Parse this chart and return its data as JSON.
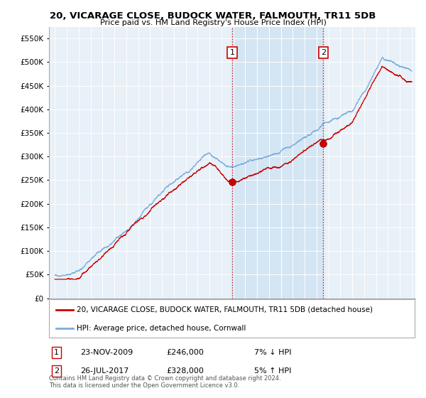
{
  "title": "20, VICARAGE CLOSE, BUDOCK WATER, FALMOUTH, TR11 5DB",
  "subtitle": "Price paid vs. HM Land Registry's House Price Index (HPI)",
  "legend_house": "20, VICARAGE CLOSE, BUDOCK WATER, FALMOUTH, TR11 5DB (detached house)",
  "legend_hpi": "HPI: Average price, detached house, Cornwall",
  "transaction1_label": "1",
  "transaction1_date": "23-NOV-2009",
  "transaction1_price": "£246,000",
  "transaction1_hpi": "7% ↓ HPI",
  "transaction2_label": "2",
  "transaction2_date": "26-JUL-2017",
  "transaction2_price": "£328,000",
  "transaction2_hpi": "5% ↑ HPI",
  "footnote": "Contains HM Land Registry data © Crown copyright and database right 2024.\nThis data is licensed under the Open Government Licence v3.0.",
  "hpi_color": "#7aaddc",
  "house_color": "#cc0000",
  "vline_color": "#cc0000",
  "shade_color": "#dce9f5",
  "background_color": "#e8f0f8",
  "ylim": [
    0,
    575000
  ],
  "yticks": [
    0,
    50000,
    100000,
    150000,
    200000,
    250000,
    300000,
    350000,
    400000,
    450000,
    500000,
    550000
  ],
  "transaction1_x": 2009.9,
  "transaction1_y": 246000,
  "transaction2_x": 2017.57,
  "transaction2_y": 328000,
  "xmin": 1995,
  "xmax": 2025
}
